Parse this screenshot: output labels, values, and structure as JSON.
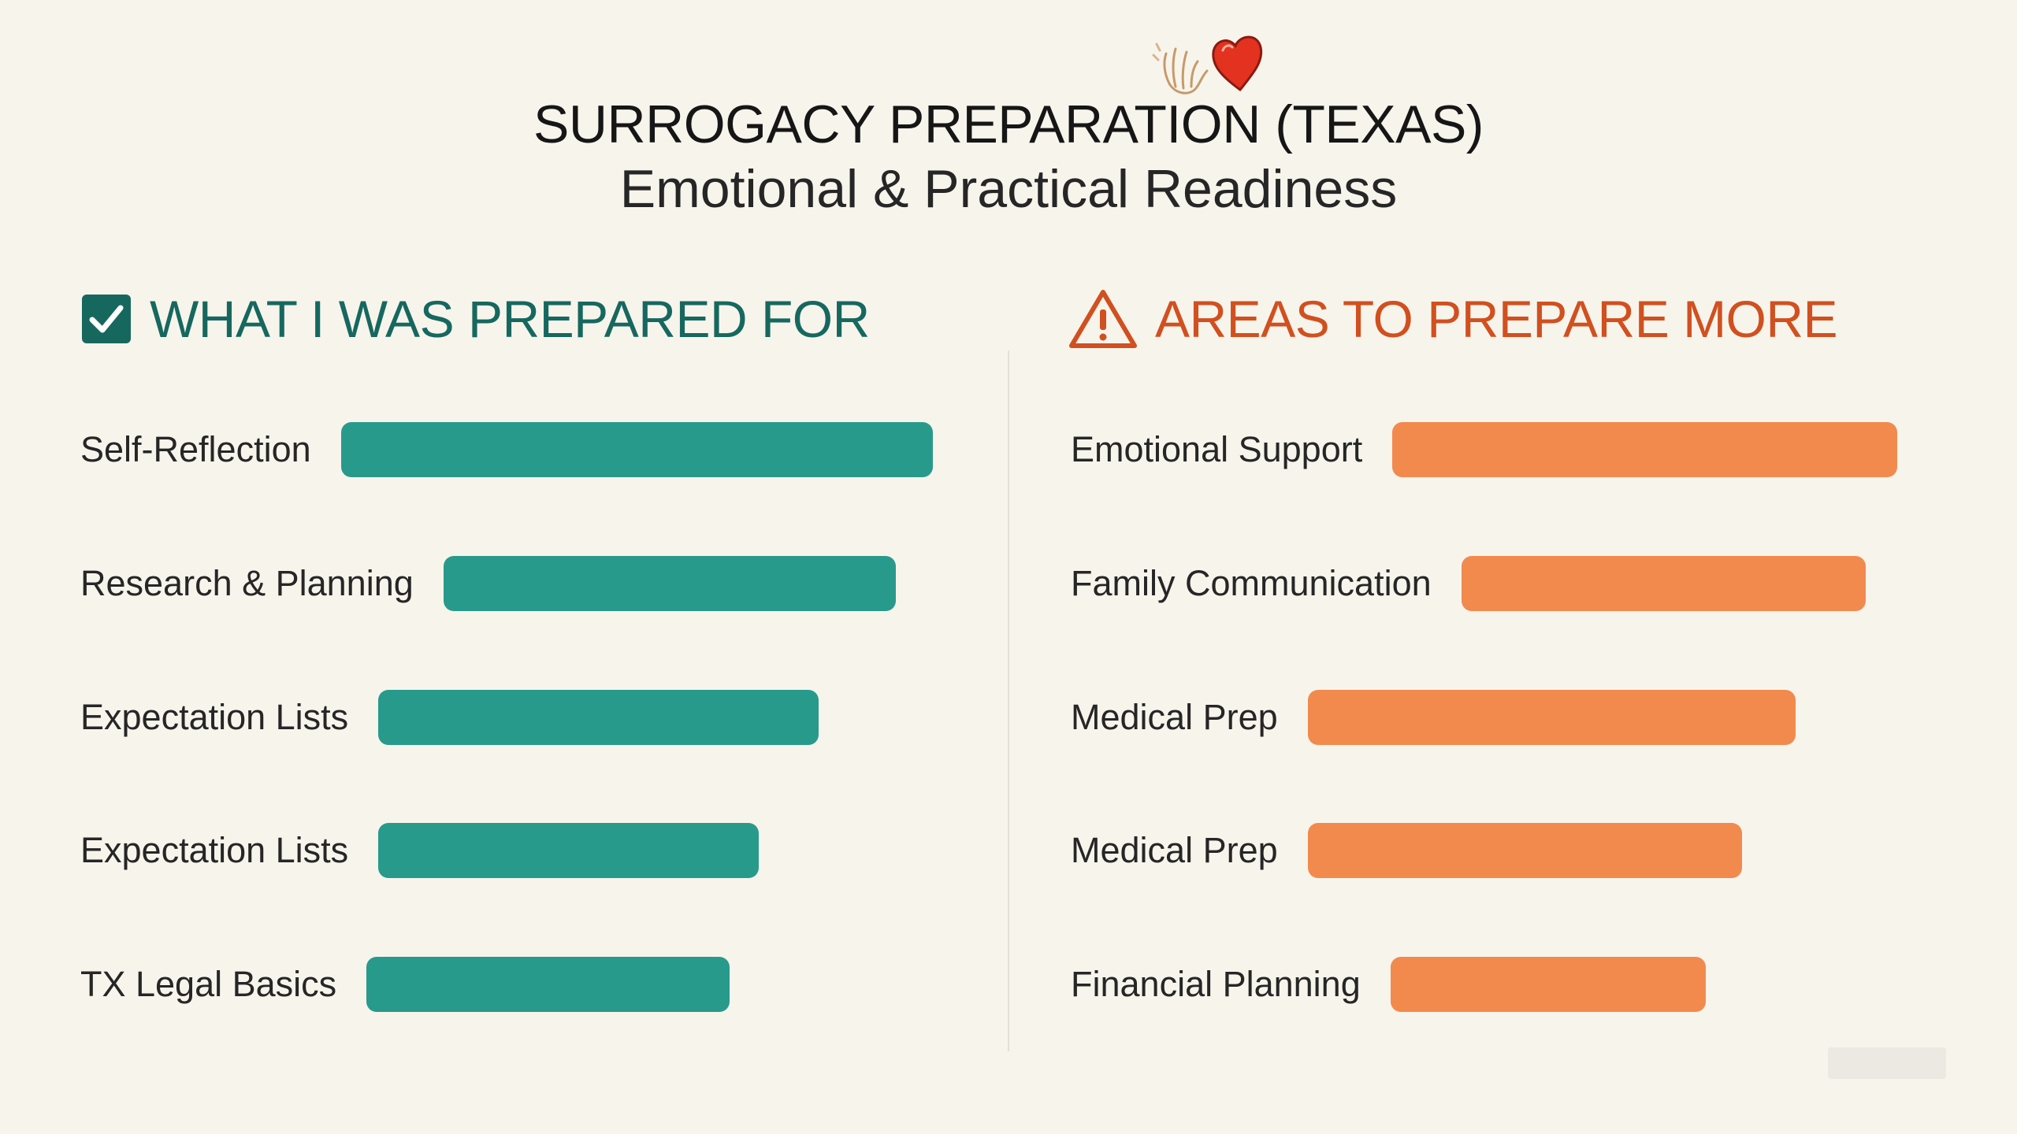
{
  "title": "SURROGACY PREPARATION (TEXAS)",
  "subtitle": "Emotional & Practical Readiness",
  "colors": {
    "background": "#f7f4ec",
    "prepared_heading": "#16685f",
    "prepared_bar": "#289a8c",
    "improve_heading": "#d1501f",
    "improve_bar": "#f28a4e"
  },
  "icons": {
    "header": [
      "waving-hand-icon",
      "heart-icon"
    ],
    "left_heading": "checkbox-checked-icon",
    "right_heading": "warning-triangle-icon"
  },
  "chart_data": [
    {
      "type": "bar",
      "orientation": "horizontal",
      "title": "WHAT I WAS PREPARED FOR",
      "categories": [
        "Self-Reflection",
        "Research & Planning",
        "Expectation Lists",
        "Expectation Lists",
        "TX Legal Basics"
      ],
      "values": [
        100,
        76,
        74,
        64,
        61
      ],
      "unit": "relative readiness (estimated, max = 100)",
      "ylim": [
        0,
        100
      ],
      "color": "#289a8c"
    },
    {
      "type": "bar",
      "orientation": "horizontal",
      "title": "AREAS TO PREPARE MORE",
      "categories": [
        "Emotional Support",
        "Family Communication",
        "Medical Prep",
        "Medical Prep",
        "Financial Planning"
      ],
      "values": [
        87,
        68,
        82,
        73,
        53
      ],
      "unit": "relative need (estimated, max = 100)",
      "ylim": [
        0,
        100
      ],
      "color": "#f28a4e"
    }
  ]
}
